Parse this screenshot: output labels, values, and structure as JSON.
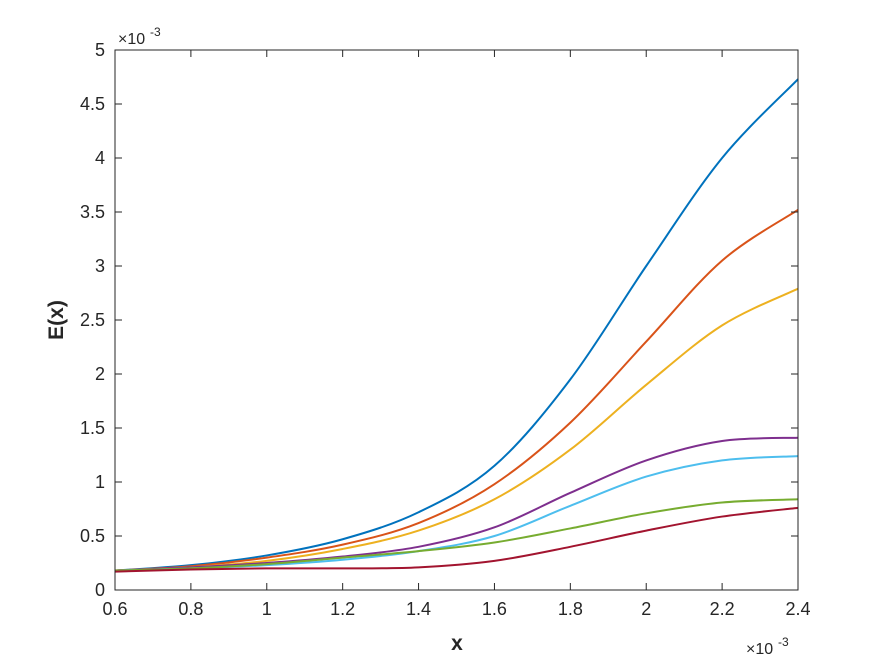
{
  "chart_data": {
    "type": "line",
    "xlabel": "x",
    "ylabel": "E(x)",
    "x_exponent_label": "×10",
    "x_exponent_power": "-3",
    "y_exponent_label": "×10",
    "y_exponent_power": "-3",
    "xlim": [
      0.6,
      2.4
    ],
    "ylim": [
      0,
      5
    ],
    "x_ticks": [
      0.6,
      0.8,
      1.0,
      1.2,
      1.4,
      1.6,
      1.8,
      2.0,
      2.2,
      2.4
    ],
    "x_tick_labels": [
      "0.6",
      "0.8",
      "1",
      "1.2",
      "1.4",
      "1.6",
      "1.8",
      "2",
      "2.2",
      "2.4"
    ],
    "y_ticks": [
      0,
      0.5,
      1,
      1.5,
      2,
      2.5,
      3,
      3.5,
      4,
      4.5,
      5
    ],
    "y_tick_labels": [
      "0",
      "0.5",
      "1",
      "1.5",
      "2",
      "2.5",
      "3",
      "3.5",
      "4",
      "4.5",
      "5"
    ],
    "grid": false,
    "x": [
      0.6,
      0.8,
      1.0,
      1.2,
      1.4,
      1.6,
      1.8,
      2.0,
      2.2,
      2.4
    ],
    "series": [
      {
        "color": "#0072bd",
        "values": [
          0.18,
          0.23,
          0.32,
          0.47,
          0.72,
          1.15,
          1.95,
          3.0,
          4.0,
          4.73
        ]
      },
      {
        "color": "#d95319",
        "values": [
          0.18,
          0.22,
          0.3,
          0.42,
          0.62,
          0.98,
          1.55,
          2.3,
          3.05,
          3.52
        ]
      },
      {
        "color": "#edb120",
        "values": [
          0.18,
          0.21,
          0.27,
          0.38,
          0.55,
          0.84,
          1.3,
          1.9,
          2.45,
          2.79
        ]
      },
      {
        "color": "#7e2f8e",
        "values": [
          0.18,
          0.21,
          0.25,
          0.31,
          0.4,
          0.58,
          0.9,
          1.2,
          1.38,
          1.41
        ]
      },
      {
        "color": "#4dbeee",
        "values": [
          0.18,
          0.2,
          0.23,
          0.28,
          0.36,
          0.5,
          0.78,
          1.05,
          1.2,
          1.24
        ]
      },
      {
        "color": "#77ac30",
        "values": [
          0.18,
          0.2,
          0.24,
          0.3,
          0.36,
          0.44,
          0.57,
          0.71,
          0.81,
          0.84
        ]
      },
      {
        "color": "#a2142f",
        "values": [
          0.17,
          0.19,
          0.2,
          0.2,
          0.21,
          0.27,
          0.4,
          0.55,
          0.68,
          0.76
        ]
      }
    ]
  }
}
